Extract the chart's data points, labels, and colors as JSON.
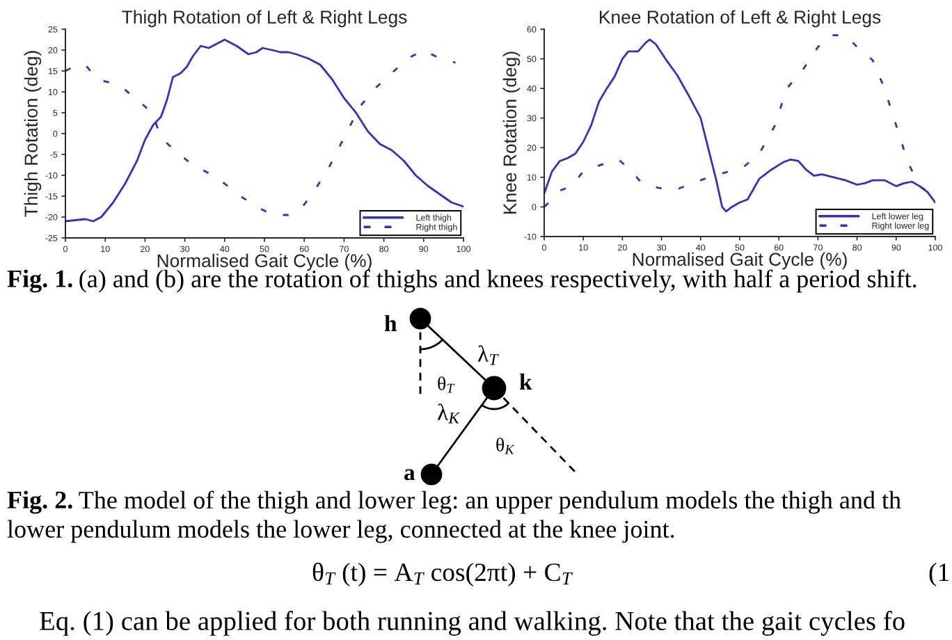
{
  "chart_data": [
    {
      "type": "line",
      "title": "Thigh Rotation of Left & Right Legs",
      "xlabel": "Normalised Gait Cycle (%)",
      "ylabel": "Thigh Rotation (deg)",
      "xlim": [
        0,
        100
      ],
      "ylim": [
        -25,
        25
      ],
      "xticks": [
        0,
        10,
        20,
        30,
        40,
        50,
        60,
        70,
        80,
        90,
        100
      ],
      "yticks": [
        -25,
        -20,
        -15,
        -10,
        -5,
        0,
        5,
        10,
        15,
        20,
        25
      ],
      "legend": "bottom right",
      "series": [
        {
          "name": "Left thigh",
          "color": "#2f2fd0",
          "line_style": "solid",
          "x": [
            0,
            5,
            7,
            9,
            12,
            15,
            18,
            20,
            22,
            24,
            25.5,
            27,
            29,
            30.5,
            32,
            34,
            36,
            38,
            40,
            41,
            43,
            46,
            48,
            49.5,
            52,
            54,
            56,
            58,
            61,
            64,
            67,
            70,
            73,
            76,
            79,
            82,
            85,
            88,
            91,
            94,
            97,
            100
          ],
          "values": [
            -21,
            -20.5,
            -21,
            -20,
            -16.5,
            -12,
            -6.5,
            -1.5,
            2,
            4,
            8,
            13.5,
            14.5,
            16,
            18.5,
            21,
            20.5,
            21.5,
            22.5,
            22,
            21,
            19,
            19.5,
            20.5,
            20,
            19.5,
            19.5,
            19,
            18,
            16.5,
            13,
            8.5,
            5,
            0.5,
            -2.5,
            -4,
            -6.5,
            -10,
            -12.5,
            -14.5,
            -16.5,
            -17.5
          ]
        },
        {
          "name": "Right thigh",
          "color": "#2f2fd0",
          "line_style": "dashed",
          "x": [
            0,
            2,
            5,
            8,
            12,
            15,
            18,
            20,
            22,
            24,
            28,
            32,
            36,
            40,
            44,
            48,
            52,
            56,
            60,
            63,
            66,
            70,
            74,
            78,
            82,
            86,
            90,
            94,
            98
          ],
          "values": [
            15,
            16,
            16.5,
            13,
            12,
            10.5,
            8,
            6.5,
            4.5,
            -1,
            -4.5,
            -7.5,
            -9.5,
            -12,
            -15,
            -17.5,
            -19.5,
            -19.5,
            -17,
            -13,
            -8.5,
            -1,
            6.5,
            11,
            14.5,
            18,
            20,
            18,
            17
          ]
        }
      ]
    },
    {
      "type": "line",
      "title": "Knee Rotation of Left & Right Legs",
      "xlabel": "Normalised Gait Cycle (%)",
      "ylabel": "Knee Rotation (deg)",
      "xlim": [
        0,
        100
      ],
      "ylim": [
        -10,
        60
      ],
      "xticks": [
        0,
        10,
        20,
        30,
        40,
        50,
        60,
        70,
        80,
        90,
        100
      ],
      "yticks": [
        -10,
        0,
        10,
        20,
        30,
        40,
        50,
        60
      ],
      "legend": "bottom right",
      "series": [
        {
          "name": "Left lower leg",
          "color": "#2f2fd0",
          "line_style": "solid",
          "x": [
            0,
            2,
            4,
            6,
            8,
            10,
            12,
            14,
            16,
            18,
            20,
            21.5,
            24,
            26,
            27,
            28.5,
            31,
            34,
            37,
            40,
            42,
            44,
            45.5,
            46.5,
            48,
            50,
            52,
            55,
            58,
            61,
            63,
            65,
            67,
            69,
            71,
            74,
            77,
            80,
            82,
            84,
            87,
            90,
            92,
            94,
            96,
            98,
            100
          ],
          "values": [
            4.5,
            12,
            15.5,
            16.5,
            18,
            22,
            27.5,
            35.5,
            40,
            44,
            50,
            52.5,
            52.5,
            55.5,
            56.5,
            55,
            50,
            44.5,
            37.5,
            30,
            19.5,
            9,
            0,
            -1.5,
            0,
            1.5,
            2.5,
            9.5,
            12.5,
            15,
            16,
            15.5,
            12.5,
            10.5,
            11,
            10,
            9,
            7.5,
            8,
            9,
            9,
            7,
            8,
            8.5,
            7,
            5,
            1.5
          ]
        },
        {
          "name": "Right lower leg",
          "color": "#2f2fd0",
          "line_style": "dashed",
          "x": [
            0,
            2,
            4,
            7,
            10,
            14,
            19,
            22,
            25,
            29,
            33,
            38,
            42,
            46,
            51,
            55,
            59,
            62,
            66,
            70,
            73,
            77,
            80,
            84,
            87,
            90,
            93,
            96,
            100
          ],
          "values": [
            0,
            2.5,
            5.5,
            7,
            12,
            14,
            16,
            12.5,
            8,
            6.5,
            5.5,
            8,
            10,
            11.5,
            13.5,
            18,
            27.5,
            40,
            46,
            54,
            58,
            58,
            54,
            49.5,
            40,
            27.5,
            15,
            7,
            3.5
          ]
        }
      ]
    },
    {
      "type": "other",
      "annotations": [
        "Fig. 1.",
        "(a) and (b) are the rotation of thighs and knees respectively, with half a period shift.",
        "h",
        "λ$_{T}$",
        "θ$_{T}$",
        "k",
        "λ$_{K}$",
        "θ$_{K}$",
        "a",
        "Fig. 2.",
        "The model of the thigh and lower leg: an upper pendulum models the thigh and th",
        "lower pendulum models the lower leg, connected at the knee joint.",
        "θ$_{T}$ (t) = A$_{T}$ cos(2πt) + C$_{T}$",
        "(1",
        "Eq. (1) can be applied for both running and walking. Note that the gait cycles fo"
      ]
    }
  ]
}
